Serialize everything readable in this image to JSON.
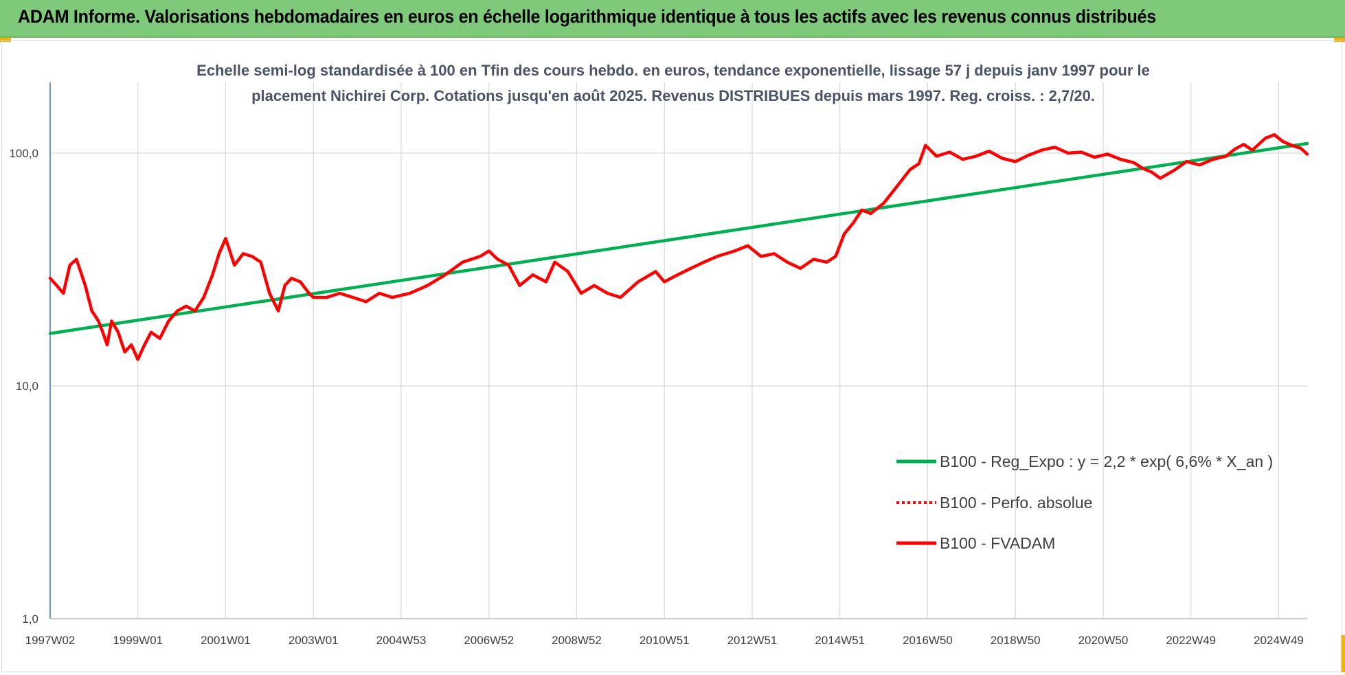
{
  "banner": {
    "title": "ADAM Informe. Valorisations hebdomadaires en euros en échelle logarithmique identique à tous les actifs avec les revenus connus distribués",
    "background": "#7fc97a"
  },
  "chart_data": {
    "type": "line",
    "title_lines": [
      "Echelle semi-log standardisée à 100 en Tfin des cours hebdo. en euros, tendance exponentielle, lissage 57 j depuis janv 1997 pour le",
      "placement Nichirei Corp. Cotations jusqu'en août 2025. Revenus DISTRIBUES depuis mars 1997. Reg. croiss. : 2,7/20."
    ],
    "y_scale": "log",
    "ylim": [
      1,
      180
    ],
    "y_ticks": [
      {
        "value": 1,
        "label": "1,0"
      },
      {
        "value": 10,
        "label": "10,0"
      },
      {
        "value": 100,
        "label": "100,0"
      }
    ],
    "xlim": [
      1997.0,
      2025.65
    ],
    "x_ticks": [
      {
        "value": 1997.0,
        "label": "1997W02"
      },
      {
        "value": 1999.0,
        "label": "1999W01"
      },
      {
        "value": 2001.0,
        "label": "2001W01"
      },
      {
        "value": 2003.0,
        "label": "2003W01"
      },
      {
        "value": 2005.0,
        "label": "2004W53"
      },
      {
        "value": 2007.0,
        "label": "2006W52"
      },
      {
        "value": 2009.0,
        "label": "2008W52"
      },
      {
        "value": 2011.0,
        "label": "2010W51"
      },
      {
        "value": 2013.0,
        "label": "2012W51"
      },
      {
        "value": 2015.0,
        "label": "2014W51"
      },
      {
        "value": 2017.0,
        "label": "2016W50"
      },
      {
        "value": 2019.0,
        "label": "2018W50"
      },
      {
        "value": 2021.0,
        "label": "2020W50"
      },
      {
        "value": 2023.0,
        "label": "2022W49"
      },
      {
        "value": 2025.0,
        "label": "2024W49"
      }
    ],
    "grid": true,
    "legend_position": "right",
    "series": [
      {
        "name": "B100 - Reg_Expo : y = 2,2 * exp( 6,6% *  X_an )",
        "color": "#00b050",
        "style": "solid",
        "x": [
          1997.0,
          2025.65
        ],
        "y": [
          16.8,
          110
        ]
      },
      {
        "name": "B100 - Perfo. absolue",
        "color": "#ff0000",
        "style": "dotted",
        "x": [],
        "y": []
      },
      {
        "name": "B100 - FVADAM",
        "color": "#ff0000",
        "style": "solid",
        "x": [
          1997.0,
          1997.15,
          1997.3,
          1997.45,
          1997.6,
          1997.8,
          1997.95,
          1998.1,
          1998.2,
          1998.3,
          1998.4,
          1998.55,
          1998.7,
          1998.85,
          1999.0,
          1999.15,
          1999.3,
          1999.5,
          1999.7,
          1999.9,
          2000.1,
          2000.3,
          2000.5,
          2000.7,
          2000.85,
          2001.0,
          2001.2,
          2001.4,
          2001.6,
          2001.8,
          2002.0,
          2002.2,
          2002.35,
          2002.5,
          2002.7,
          2002.9,
          2003.0,
          2003.3,
          2003.6,
          2003.9,
          2004.2,
          2004.5,
          2004.8,
          2005.2,
          2005.6,
          2006.0,
          2006.4,
          2006.8,
          2007.0,
          2007.2,
          2007.45,
          2007.7,
          2008.0,
          2008.3,
          2008.5,
          2008.8,
          2009.1,
          2009.4,
          2009.7,
          2010.0,
          2010.4,
          2010.8,
          2011.0,
          2011.3,
          2011.6,
          2011.9,
          2012.2,
          2012.6,
          2012.9,
          2013.2,
          2013.5,
          2013.8,
          2014.1,
          2014.4,
          2014.7,
          2014.9,
          2015.1,
          2015.3,
          2015.5,
          2015.7,
          2016.0,
          2016.3,
          2016.6,
          2016.8,
          2016.95,
          2017.2,
          2017.5,
          2017.8,
          2018.1,
          2018.4,
          2018.7,
          2019.0,
          2019.3,
          2019.6,
          2019.9,
          2020.2,
          2020.5,
          2020.8,
          2021.1,
          2021.4,
          2021.7,
          2021.9,
          2022.1,
          2022.3,
          2022.6,
          2022.9,
          2023.2,
          2023.5,
          2023.8,
          2024.0,
          2024.2,
          2024.4,
          2024.7,
          2024.9,
          2025.1,
          2025.3,
          2025.5,
          2025.65
        ],
        "y": [
          29,
          27,
          25,
          33,
          35,
          27,
          21,
          19,
          17,
          15,
          19,
          17,
          14,
          15,
          13,
          15,
          17,
          16,
          19,
          21,
          22,
          21,
          24,
          30,
          37,
          43,
          33,
          37,
          36,
          34,
          25,
          21,
          27,
          29,
          28,
          25,
          24,
          24,
          25,
          24,
          23,
          25,
          24,
          25,
          27,
          30,
          34,
          36,
          38,
          35,
          33,
          27,
          30,
          28,
          34,
          31,
          25,
          27,
          25,
          24,
          28,
          31,
          28,
          30,
          32,
          34,
          36,
          38,
          40,
          36,
          37,
          34,
          32,
          35,
          34,
          36,
          45,
          50,
          57,
          55,
          61,
          72,
          85,
          90,
          108,
          97,
          101,
          94,
          97,
          102,
          95,
          92,
          98,
          103,
          106,
          100,
          101,
          96,
          99,
          94,
          91,
          86,
          83,
          78,
          84,
          92,
          89,
          94,
          97,
          104,
          109,
          103,
          116,
          120,
          112,
          108,
          105,
          99
        ]
      }
    ]
  }
}
